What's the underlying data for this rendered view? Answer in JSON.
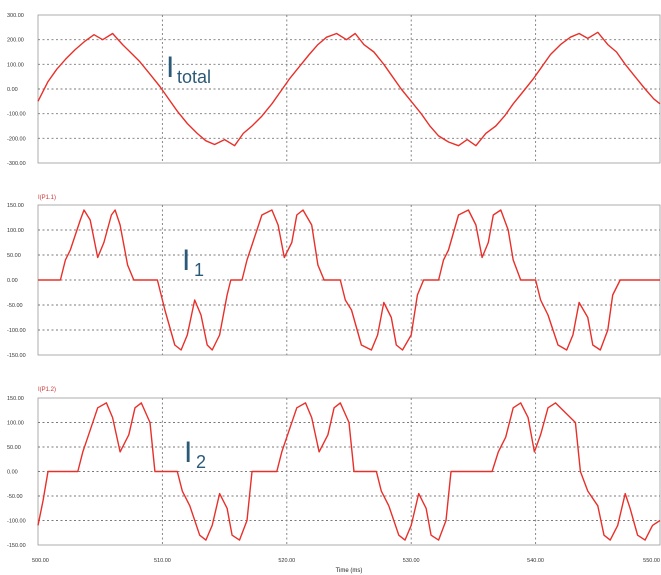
{
  "chart_data": [
    {
      "type": "line",
      "title": "",
      "annotation": {
        "main": "I",
        "sub": "total"
      },
      "xlim": [
        500,
        550
      ],
      "ylim": [
        -300,
        300
      ],
      "yticks": [
        "300.00",
        "200.00",
        "100.00",
        "0.00",
        "-100.00",
        "-200.00",
        "-300.00"
      ],
      "ytick_values": [
        300,
        200,
        100,
        0,
        -100,
        -200,
        -300
      ],
      "grid": true,
      "series": [
        {
          "color": "#e8302a",
          "x": [
            500,
            500.8,
            501.5,
            502.2,
            503.0,
            503.8,
            504.5,
            505.2,
            506.0,
            506.8,
            507.4,
            508.2,
            509.0,
            509.8,
            510.5,
            511.2,
            512.0,
            512.8,
            513.5,
            514.2,
            515.0,
            515.8,
            516.5,
            517.2,
            518.0,
            518.8,
            519.5,
            520.2,
            521.0,
            521.8,
            522.5,
            523.2,
            524.0,
            524.8,
            525.5,
            526.2,
            527.0,
            527.8,
            528.5,
            529.2,
            530.0,
            530.8,
            531.5,
            532.2,
            533.0,
            533.8,
            534.5,
            535.2,
            536.0,
            536.8,
            537.5,
            538.2,
            539.0,
            539.8,
            540.5,
            541.2,
            542.0,
            542.8,
            543.5,
            544.2,
            545.0,
            545.8,
            546.5,
            547.2,
            548.0,
            548.8,
            549.5,
            550
          ],
          "y": [
            -50,
            30,
            80,
            120,
            160,
            195,
            220,
            200,
            225,
            180,
            150,
            110,
            60,
            10,
            -40,
            -90,
            -140,
            -180,
            -210,
            -225,
            -205,
            -230,
            -180,
            -150,
            -110,
            -60,
            -10,
            40,
            90,
            140,
            180,
            210,
            225,
            200,
            225,
            180,
            150,
            100,
            50,
            0,
            -50,
            -100,
            -150,
            -190,
            -215,
            -230,
            -205,
            -230,
            -180,
            -150,
            -110,
            -60,
            -10,
            40,
            90,
            140,
            180,
            210,
            225,
            205,
            230,
            180,
            150,
            100,
            50,
            0,
            -40,
            -60
          ]
        }
      ]
    },
    {
      "type": "line",
      "title": "I(P1.1)",
      "annotation": {
        "main": "I",
        "sub": "1"
      },
      "xlim": [
        500,
        550
      ],
      "ylim": [
        -150,
        150
      ],
      "yticks": [
        "150.00",
        "100.00",
        "50.00",
        "0.00",
        "-50.00",
        "-100.00",
        "-150.00"
      ],
      "ytick_values": [
        150,
        100,
        50,
        0,
        -50,
        -100,
        -150
      ],
      "grid": true,
      "series": [
        {
          "color": "#e8302a",
          "x": [
            500,
            501.8,
            502.2,
            502.6,
            503.4,
            503.7,
            504.2,
            504.8,
            505.3,
            505.9,
            506.2,
            506.6,
            507.2,
            507.7,
            508.0,
            509.2,
            509.6,
            510.2,
            511.0,
            511.5,
            512.0,
            512.6,
            513.1,
            513.6,
            514.0,
            514.6,
            515.2,
            515.5,
            516.4,
            516.8,
            517.2,
            518.0,
            518.8,
            519.3,
            519.8,
            520.4,
            520.8,
            521.3,
            522.0,
            522.5,
            523.0,
            523.3,
            524.3,
            524.7,
            525.2,
            526.0,
            526.8,
            527.3,
            527.8,
            528.4,
            528.8,
            529.3,
            530.0,
            530.5,
            531.0,
            531.4,
            532.2,
            532.6,
            533.0,
            533.8,
            534.6,
            535.2,
            535.7,
            536.2,
            536.6,
            537.2,
            537.8,
            538.2,
            538.8,
            539.2,
            540.0,
            540.4,
            541.0,
            541.8,
            542.5,
            543.0,
            543.5,
            544.2,
            544.6,
            545.2,
            545.8,
            546.2,
            546.8,
            547.2,
            548.0,
            549.5,
            550
          ],
          "y": [
            0,
            0,
            40,
            60,
            120,
            140,
            120,
            45,
            75,
            130,
            140,
            110,
            30,
            0,
            0,
            0,
            0,
            -60,
            -130,
            -140,
            -110,
            -40,
            -70,
            -130,
            -140,
            -110,
            -30,
            0,
            0,
            40,
            70,
            130,
            140,
            110,
            45,
            75,
            130,
            140,
            110,
            30,
            0,
            0,
            0,
            -40,
            -60,
            -130,
            -140,
            -110,
            -45,
            -75,
            -130,
            -140,
            -110,
            -30,
            0,
            0,
            0,
            40,
            60,
            130,
            140,
            110,
            45,
            75,
            130,
            140,
            100,
            40,
            0,
            0,
            0,
            -40,
            -70,
            -130,
            -140,
            -110,
            -45,
            -75,
            -130,
            -140,
            -100,
            -30,
            0,
            0,
            0,
            0,
            0
          ]
        }
      ]
    },
    {
      "type": "line",
      "title": "I(P1.2)",
      "annotation": {
        "main": "I",
        "sub": "2"
      },
      "xlim": [
        500,
        550
      ],
      "ylim": [
        -150,
        150
      ],
      "yticks": [
        "150.00",
        "100.00",
        "50.00",
        "0.00",
        "-50.00",
        "-100.00",
        "-150.00"
      ],
      "ytick_values": [
        150,
        100,
        50,
        0,
        -50,
        -100,
        -150
      ],
      "grid": true,
      "series": [
        {
          "color": "#e8302a",
          "x": [
            500,
            500.4,
            500.8,
            503.2,
            503.6,
            504.0,
            504.8,
            505.5,
            506.0,
            506.6,
            507.3,
            507.8,
            508.3,
            509.0,
            509.4,
            511.2,
            511.6,
            512.2,
            513.0,
            513.5,
            514.0,
            514.6,
            515.2,
            515.6,
            516.2,
            516.8,
            517.2,
            519.2,
            519.6,
            520.0,
            520.8,
            521.5,
            522.0,
            522.6,
            523.3,
            523.8,
            524.3,
            525.0,
            525.4,
            527.2,
            527.6,
            528.2,
            529.0,
            529.5,
            530.0,
            530.6,
            531.2,
            531.6,
            532.2,
            532.8,
            533.2,
            536.5,
            537.0,
            537.6,
            538.2,
            538.8,
            539.4,
            539.9,
            540.4,
            541.0,
            541.6,
            543.2,
            543.6,
            544.2,
            545.0,
            545.5,
            546.0,
            546.6,
            547.2,
            547.6,
            548.2,
            548.8,
            549.4,
            550
          ],
          "y": [
            -110,
            -60,
            0,
            0,
            40,
            70,
            130,
            140,
            110,
            40,
            75,
            130,
            140,
            100,
            0,
            0,
            -40,
            -70,
            -130,
            -140,
            -110,
            -45,
            -75,
            -130,
            -140,
            -100,
            0,
            0,
            40,
            70,
            130,
            140,
            110,
            40,
            75,
            130,
            140,
            100,
            0,
            0,
            -40,
            -70,
            -130,
            -140,
            -110,
            -45,
            -75,
            -130,
            -140,
            -100,
            0,
            0,
            40,
            70,
            130,
            140,
            110,
            40,
            75,
            130,
            140,
            100,
            0,
            -40,
            -70,
            -130,
            -140,
            -110,
            -45,
            -75,
            -130,
            -140,
            -110,
            -100
          ]
        }
      ]
    }
  ],
  "x_ticks": [
    "500.00",
    "510.00",
    "520.00",
    "530.00",
    "540.00",
    "550.00"
  ],
  "x_tick_values": [
    500,
    510,
    520,
    530,
    540,
    550
  ],
  "x_title": "Time (ms)"
}
